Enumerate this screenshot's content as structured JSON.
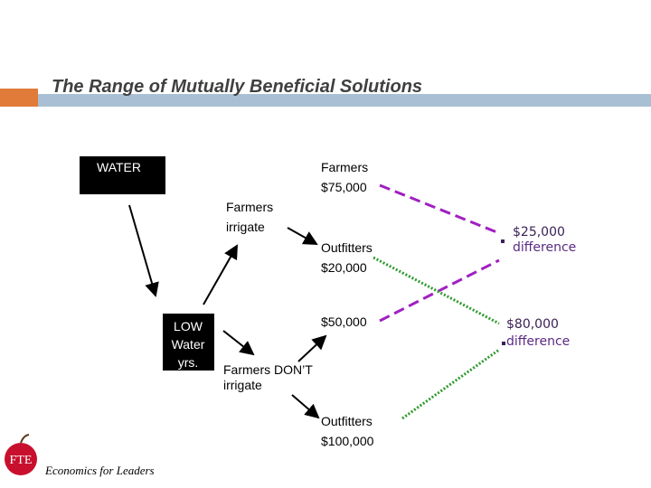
{
  "header": {
    "title": "The Range of Mutually Beneficial Solutions"
  },
  "nodes": [
    {
      "lines": [
        "WATER"
      ]
    },
    {
      "lines": [
        "Farmers",
        "$75,000"
      ]
    },
    {
      "lines": [
        "Farmers",
        "irrigate"
      ]
    },
    {
      "lines": [
        "Outfitters",
        "$20,000"
      ]
    },
    {
      "lines": [
        "LOW",
        "Water",
        "yrs."
      ]
    },
    {
      "lines": [
        "$50,000"
      ]
    },
    {
      "lines": [
        "Farmers DON’T",
        "irrigate"
      ]
    },
    {
      "lines": [
        "Outfitters",
        "$100,000"
      ]
    },
    {
      "lines": [
        "$25,000",
        "difference"
      ]
    },
    {
      "lines": [
        "$80,000",
        "difference"
      ]
    }
  ],
  "footer": {
    "logo": "FTE",
    "tagline": "Economics for Leaders"
  }
}
